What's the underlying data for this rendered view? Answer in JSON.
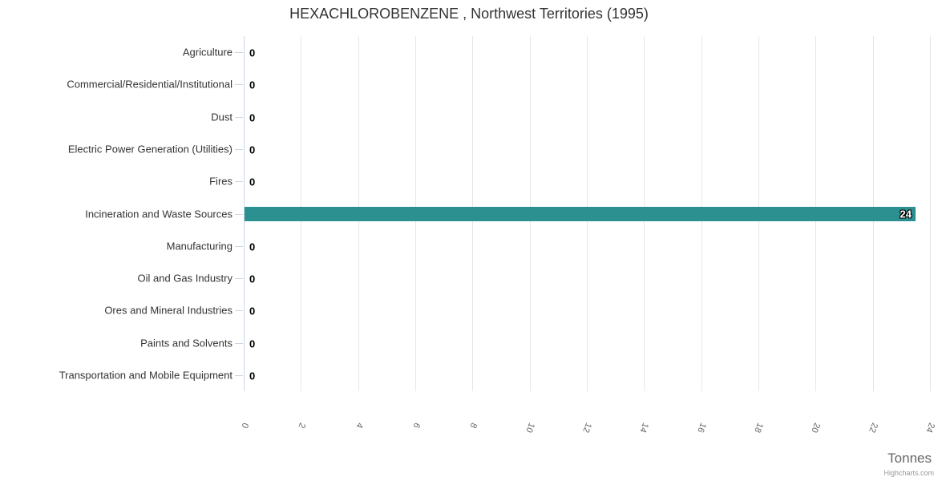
{
  "title": "HEXACHLOROBENZENE , Northwest Territories (1995)",
  "chart_data": {
    "type": "bar",
    "orientation": "horizontal",
    "title": "HEXACHLOROBENZENE , Northwest Territories (1995)",
    "categories": [
      "Agriculture",
      "Commercial/Residential/Institutional",
      "Dust",
      "Electric Power Generation (Utilities)",
      "Fires",
      "Incineration and Waste Sources",
      "Manufacturing",
      "Oil and Gas Industry",
      "Ores and Mineral Industries",
      "Paints and Solvents",
      "Transportation and Mobile Equipment"
    ],
    "values": [
      0,
      0,
      0,
      0,
      0,
      23.5,
      0,
      0,
      0,
      0,
      0
    ],
    "value_labels": [
      "0",
      "0",
      "0",
      "0",
      "0",
      "24",
      "0",
      "0",
      "0",
      "0",
      "0"
    ],
    "xlabel": "Tonnes",
    "ylabel": "",
    "xlim": [
      0,
      24
    ],
    "x_ticks": [
      0,
      2,
      4,
      6,
      8,
      10,
      12,
      14,
      16,
      18,
      20,
      22,
      24
    ],
    "grid": "vertical-only",
    "legend": "none",
    "colors": {
      "bar": "#2b908f",
      "grid_line": "#e6e6e6",
      "axis_line": "#ccd6eb",
      "title_text": "#333333",
      "category_label": "#333333",
      "tick_label": "#666666",
      "axis_title": "#666666",
      "credits": "#999999",
      "data_label_outside": "#000000",
      "data_label_inside": "#ffffff"
    }
  },
  "credits": {
    "text": "Highcharts.com"
  }
}
